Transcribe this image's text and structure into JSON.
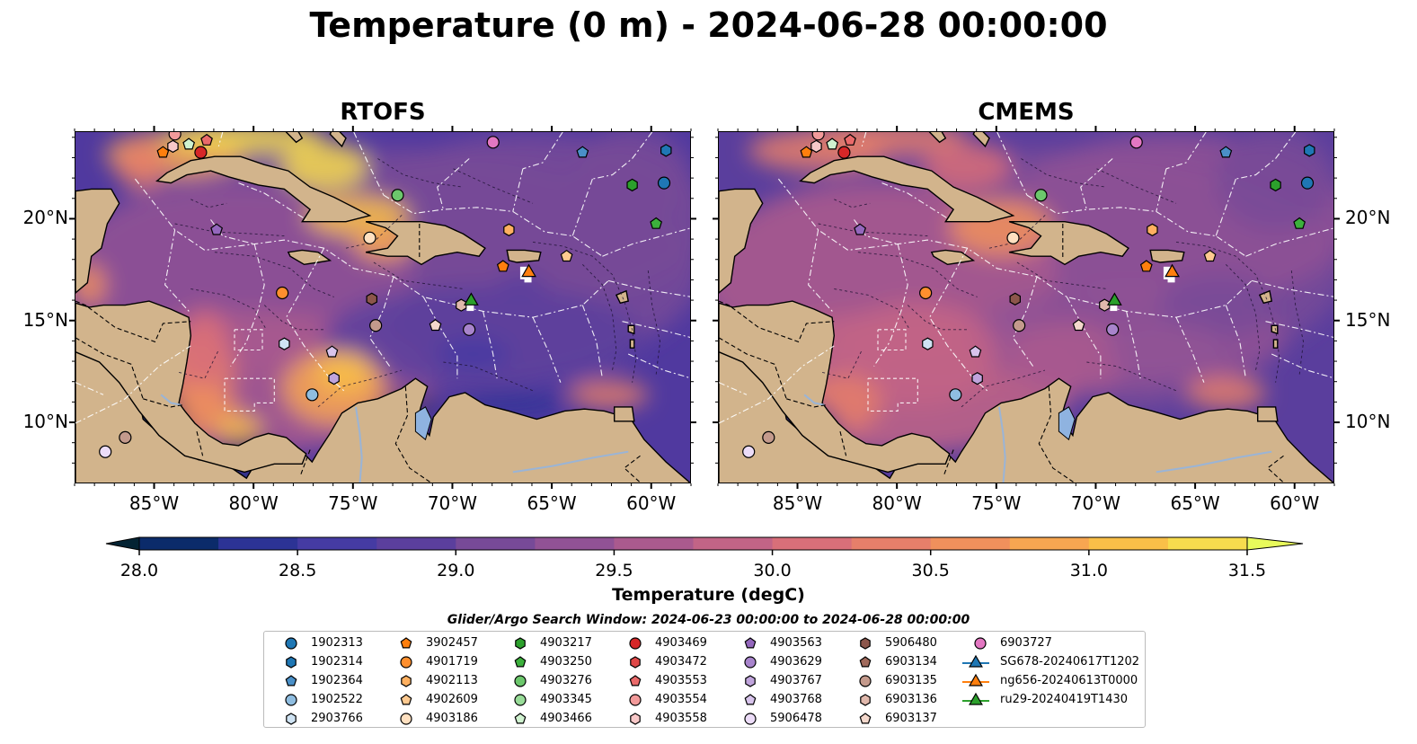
{
  "title": "Temperature (0 m) - 2024-06-28 00:00:00",
  "panels": [
    {
      "title": "RTOFS"
    },
    {
      "title": "CMEMS"
    }
  ],
  "map": {
    "lon_range": [
      -89.0,
      -58.0
    ],
    "lat_range": [
      7.0,
      24.3
    ],
    "lon_ticks": [
      "85°W",
      "80°W",
      "75°W",
      "70°W",
      "65°W",
      "60°W"
    ],
    "lat_ticks": [
      "20°N",
      "15°N",
      "10°N"
    ],
    "land_color": "#d2b48c",
    "lake_color": "#8fb3e0"
  },
  "colorbar": {
    "label": "Temperature (degC)",
    "range": [
      28.0,
      31.5
    ],
    "ticks": [
      "28.0",
      "28.5",
      "29.0",
      "29.5",
      "30.0",
      "30.5",
      "31.0",
      "31.5"
    ],
    "colors": [
      "#042333",
      "#0b2b6a",
      "#2c3395",
      "#453ba3",
      "#5b3f9d",
      "#774a98",
      "#915295",
      "#aa5a8e",
      "#c26486",
      "#d86f79",
      "#e67f6a",
      "#f0905c",
      "#f7a651",
      "#f9bf48",
      "#f7dc4e",
      "#e8fa5b"
    ]
  },
  "legend": {
    "title": "Glider/Argo Search Window: 2024-06-23 00:00:00 to 2024-06-28 00:00:00",
    "items": [
      {
        "label": "1902313",
        "marker": "circle",
        "color": "#1f77b4"
      },
      {
        "label": "1902314",
        "marker": "hexagon",
        "color": "#1f77b4"
      },
      {
        "label": "1902364",
        "marker": "pentagon",
        "color": "#4a90c8"
      },
      {
        "label": "1902522",
        "marker": "circle",
        "color": "#8fbde0"
      },
      {
        "label": "2903766",
        "marker": "hexagon",
        "color": "#cfe3f3"
      },
      {
        "label": "3902457",
        "marker": "pentagon",
        "color": "#ff7f0e"
      },
      {
        "label": "4901719",
        "marker": "circle",
        "color": "#ff8f2e"
      },
      {
        "label": "4902113",
        "marker": "hexagon",
        "color": "#ffb060"
      },
      {
        "label": "4902609",
        "marker": "pentagon",
        "color": "#ffca90"
      },
      {
        "label": "4903186",
        "marker": "circle",
        "color": "#ffe0c0"
      },
      {
        "label": "4903217",
        "marker": "hexagon",
        "color": "#2ca02c"
      },
      {
        "label": "4903250",
        "marker": "pentagon",
        "color": "#3cb03c"
      },
      {
        "label": "4903276",
        "marker": "circle",
        "color": "#6cc76c"
      },
      {
        "label": "4903345",
        "marker": "circle",
        "color": "#98dc98"
      },
      {
        "label": "4903466",
        "marker": "pentagon",
        "color": "#d0f2d0"
      },
      {
        "label": "4903469",
        "marker": "circle",
        "color": "#d62728"
      },
      {
        "label": "4903472",
        "marker": "hexagon",
        "color": "#e04848"
      },
      {
        "label": "4903553",
        "marker": "pentagon",
        "color": "#ea6a6a"
      },
      {
        "label": "4903554",
        "marker": "circle",
        "color": "#f29a9a"
      },
      {
        "label": "4903558",
        "marker": "hexagon",
        "color": "#f8c8c8"
      },
      {
        "label": "4903563",
        "marker": "pentagon",
        "color": "#9467bd"
      },
      {
        "label": "4903629",
        "marker": "circle",
        "color": "#a884cc"
      },
      {
        "label": "4903767",
        "marker": "hexagon",
        "color": "#c0a4dc"
      },
      {
        "label": "4903768",
        "marker": "pentagon",
        "color": "#d8c4ec"
      },
      {
        "label": "5906478",
        "marker": "circle",
        "color": "#ecdcf8"
      },
      {
        "label": "5906480",
        "marker": "hexagon",
        "color": "#8c564b"
      },
      {
        "label": "6903134",
        "marker": "pentagon",
        "color": "#a06a5c"
      },
      {
        "label": "6903135",
        "marker": "circle",
        "color": "#c49a8c"
      },
      {
        "label": "6903136",
        "marker": "hexagon",
        "color": "#e0b8ac"
      },
      {
        "label": "6903137",
        "marker": "pentagon",
        "color": "#f4d8cc"
      },
      {
        "label": "6903727",
        "marker": "circle",
        "color": "#e377c2"
      },
      {
        "label": "SG678-20240617T1202",
        "marker": "triangle-line",
        "color": "#1f77b4"
      },
      {
        "label": "ng656-20240613T0000",
        "marker": "triangle-line",
        "color": "#ff7f0e"
      },
      {
        "label": "ru29-20240419T1430",
        "marker": "triangle-line",
        "color": "#2ca02c"
      }
    ]
  },
  "observations": [
    {
      "id": "3902457",
      "lon": -84.6,
      "lat": 23.3
    },
    {
      "id": "4903558",
      "lon": -84.1,
      "lat": 23.6
    },
    {
      "id": "4903466",
      "lon": -83.3,
      "lat": 23.7
    },
    {
      "id": "4903553",
      "lon": -82.4,
      "lat": 23.9
    },
    {
      "id": "4903469",
      "lon": -82.7,
      "lat": 23.3
    },
    {
      "id": "4903554",
      "lon": -84.0,
      "lat": 24.2
    },
    {
      "id": "6903727",
      "lon": -68.0,
      "lat": 23.8
    },
    {
      "id": "1902364",
      "lon": -63.5,
      "lat": 23.3
    },
    {
      "id": "1902314",
      "lon": -59.3,
      "lat": 23.4
    },
    {
      "id": "1902313",
      "lon": -59.4,
      "lat": 21.8
    },
    {
      "id": "4903217",
      "lon": -61.0,
      "lat": 21.7
    },
    {
      "id": "4903250",
      "lon": -59.8,
      "lat": 19.8
    },
    {
      "id": "4903276",
      "lon": -72.8,
      "lat": 21.2
    },
    {
      "id": "4903563",
      "lon": -81.9,
      "lat": 19.5
    },
    {
      "id": "4903186",
      "lon": -74.2,
      "lat": 19.1
    },
    {
      "id": "4902113",
      "lon": -67.2,
      "lat": 19.5
    },
    {
      "id": "3902457",
      "lon": -67.5,
      "lat": 17.7
    },
    {
      "id": "4902609",
      "lon": -64.3,
      "lat": 18.2
    },
    {
      "id": "4901719",
      "lon": -78.6,
      "lat": 16.4
    },
    {
      "id": "5906480",
      "lon": -74.1,
      "lat": 16.1
    },
    {
      "id": "6903135",
      "lon": -73.9,
      "lat": 14.8
    },
    {
      "id": "6903136",
      "lon": -69.6,
      "lat": 15.8
    },
    {
      "id": "6903137",
      "lon": -70.9,
      "lat": 14.8
    },
    {
      "id": "4903629",
      "lon": -69.2,
      "lat": 14.6
    },
    {
      "id": "2903766",
      "lon": -78.5,
      "lat": 13.9
    },
    {
      "id": "4903768",
      "lon": -76.1,
      "lat": 13.5
    },
    {
      "id": "4903767",
      "lon": -76.0,
      "lat": 12.2
    },
    {
      "id": "1902522",
      "lon": -77.1,
      "lat": 11.4
    },
    {
      "id": "6903135",
      "lon": -86.5,
      "lat": 9.3
    },
    {
      "id": "5906478",
      "lon": -87.5,
      "lat": 8.6
    }
  ],
  "gliders": [
    {
      "id": "SG678-20240617T1202",
      "lon": -66.5,
      "lat": 17.6,
      "color": "#1f77b4",
      "hidden": true
    },
    {
      "id": "ng656-20240613T0000",
      "lon": -66.2,
      "lat": 17.4,
      "color": "#ff7f0e"
    },
    {
      "id": "ru29-20240419T1430",
      "lon": -69.1,
      "lat": 16.0,
      "color": "#2ca02c"
    }
  ]
}
